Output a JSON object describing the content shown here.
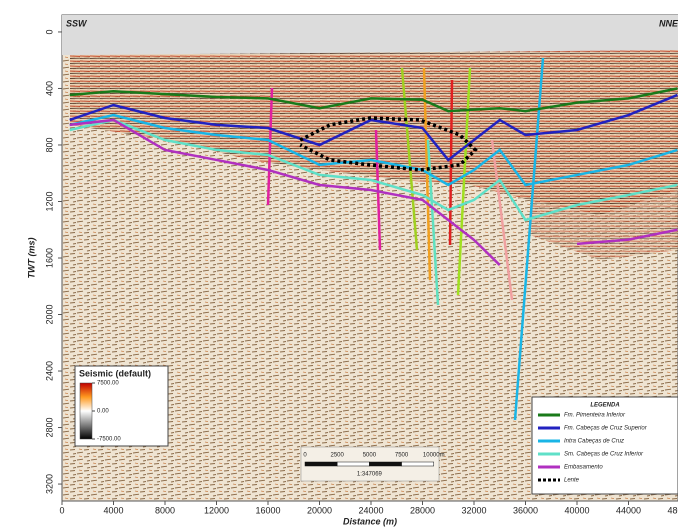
{
  "chart_data": {
    "type": "line",
    "title_left": "SSW",
    "title_right": "NNE",
    "x_label": "Distance (m)",
    "y_label": "TWT (ms)",
    "x": [
      600,
      4000,
      8000,
      12000,
      16000,
      20000,
      24000,
      28000,
      30000,
      32000,
      34000,
      36000,
      40000,
      44000,
      47800
    ],
    "xlim": [
      0,
      48000
    ],
    "xticks": [
      0,
      4000,
      8000,
      12000,
      16000,
      20000,
      24000,
      28000,
      32000,
      36000,
      40000,
      44000,
      48000
    ],
    "ylim": [
      -120,
      3320
    ],
    "y_inverted": true,
    "yticks": [
      0,
      400,
      800,
      1200,
      1600,
      2000,
      2400,
      2800,
      3200
    ],
    "series": [
      {
        "name": "Fm. Pimenteira Inferior",
        "color": "#1a7a1a",
        "values": [
          446,
          420,
          440,
          460,
          470,
          540,
          470,
          480,
          560,
          550,
          540,
          560,
          500,
          470,
          400
        ]
      },
      {
        "name": "Fm. Cabeças de Cruz Superior",
        "color": "#2222c0",
        "values": [
          623,
          517,
          609,
          658,
          680,
          800,
          623,
          680,
          906,
          765,
          623,
          729,
          694,
          588,
          446
        ]
      },
      {
        "name": "Intra Cabeças de Cruz",
        "color": "#19b5e6",
        "values": [
          658,
          588,
          680,
          729,
          765,
          941,
          906,
          977,
          1083,
          977,
          835,
          1083,
          1012,
          941,
          835
        ]
      },
      {
        "name": "Sm. Cabeças de Cruz Inferior",
        "color": "#5fe0c8",
        "values": [
          694,
          623,
          765,
          835,
          871,
          1012,
          1048,
          1154,
          1260,
          1189,
          1048,
          1331,
          1225,
          1154,
          1083
        ]
      },
      {
        "name": "Embasamento",
        "color": "#b030c0",
        "values": [
          658,
          623,
          835,
          906,
          977,
          1083,
          1119,
          1189,
          1331,
          1472,
          1650,
          null,
          1500,
          1470,
          1400
        ]
      },
      {
        "name": "Lente",
        "color": "#000000",
        "style": "dotted",
        "x": [
          18500,
          20800,
          23900,
          27800,
          30900,
          32100,
          30900,
          27800,
          23900,
          20800,
          18500
        ],
        "values": [
          765,
          658,
          609,
          623,
          729,
          835,
          941,
          977,
          941,
          906,
          800
        ]
      }
    ],
    "legend": {
      "title": "LEGENDA",
      "position": "lower right"
    },
    "colorbar": {
      "title": "Seismic (default)",
      "lim": [
        -7500,
        7500
      ],
      "ticks": [
        {
          "value": 7500,
          "label": "7500.00"
        },
        {
          "value": 0,
          "label": "0.00"
        },
        {
          "value": -7500,
          "label": "-7500.00"
        }
      ]
    },
    "scalebar": {
      "ticks": [
        0,
        2500,
        5000,
        7500,
        {
          "value": 10000,
          "label": "10000m"
        }
      ],
      "ratio": "1:347069"
    }
  }
}
